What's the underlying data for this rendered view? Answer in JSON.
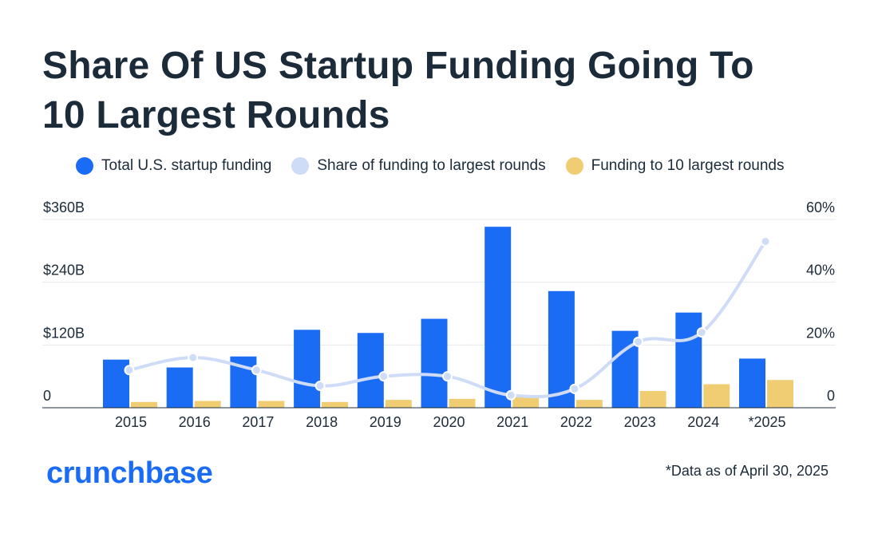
{
  "title_lines": [
    "Share Of US Startup Funding Going To",
    "10 Largest Rounds"
  ],
  "legend": [
    {
      "label": "Total U.S. startup funding",
      "color": "#1a6cf5"
    },
    {
      "label": "Share of funding to largest rounds",
      "color": "#cfdcf7"
    },
    {
      "label": "Funding to 10 largest rounds",
      "color": "#f0cd72"
    }
  ],
  "brand": "crunchbase",
  "footnote": "*Data as of April 30, 2025",
  "chart_data": {
    "type": "bar",
    "categories": [
      "2015",
      "2016",
      "2017",
      "2018",
      "2019",
      "2020",
      "2021",
      "2022",
      "2023",
      "2024",
      "*2025"
    ],
    "series": [
      {
        "name": "Total U.S. startup funding",
        "kind": "bar",
        "axis": "left",
        "color": "#1a6cf5",
        "values": [
          92,
          77,
          98,
          149,
          143,
          170,
          346,
          223,
          147,
          182,
          94
        ]
      },
      {
        "name": "Funding to 10 largest rounds",
        "kind": "bar",
        "axis": "left",
        "color": "#f0cd72",
        "values": [
          11,
          13,
          13,
          11,
          15,
          17,
          23,
          15,
          32,
          45,
          53
        ]
      },
      {
        "name": "Share of funding to largest rounds",
        "kind": "line",
        "axis": "right",
        "color": "#cfdcf7",
        "values": [
          12,
          16,
          12,
          7,
          10,
          10,
          4,
          6,
          21,
          24,
          53
        ]
      }
    ],
    "left_axis": {
      "ylim": [
        0,
        360
      ],
      "ticks": [
        {
          "value": 0,
          "label": "0"
        },
        {
          "value": 120,
          "label": "$120B"
        },
        {
          "value": 240,
          "label": "$240B"
        },
        {
          "value": 360,
          "label": "$360B"
        }
      ]
    },
    "right_axis": {
      "ylim": [
        0,
        60
      ],
      "ticks": [
        {
          "value": 0,
          "label": "0"
        },
        {
          "value": 20,
          "label": "20%"
        },
        {
          "value": 40,
          "label": "40%"
        },
        {
          "value": 60,
          "label": "60%"
        }
      ]
    },
    "grid": true,
    "legend_position": "top"
  }
}
